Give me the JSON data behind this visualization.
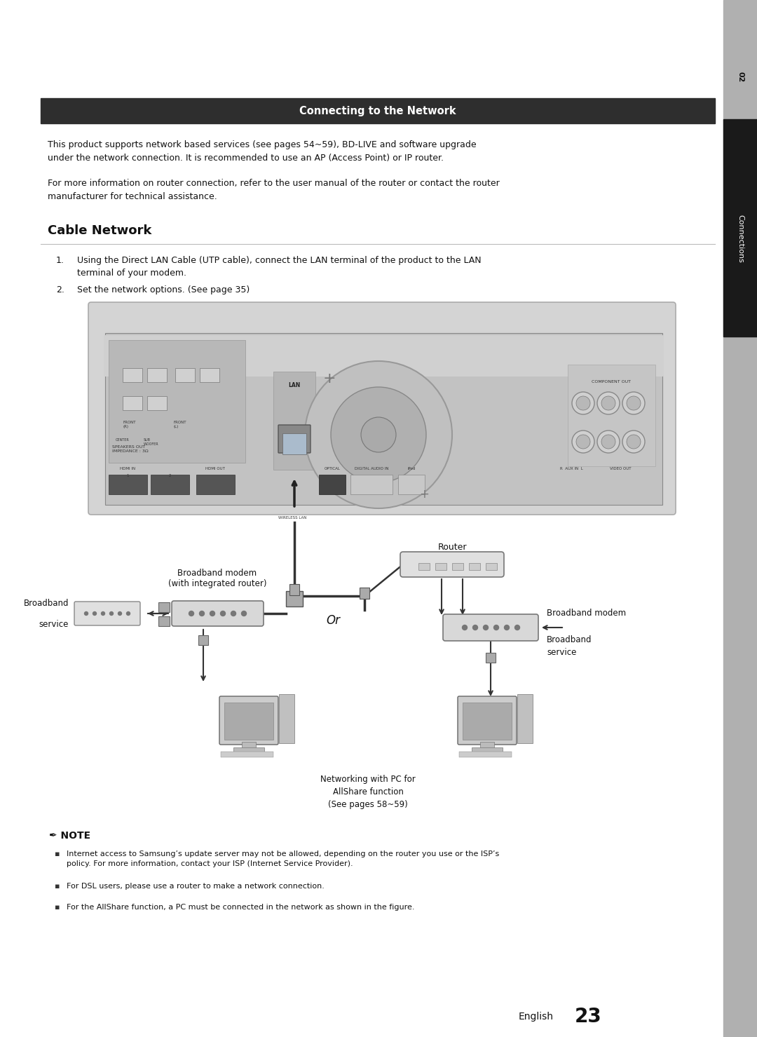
{
  "bg_color": "#ffffff",
  "title_bar_color": "#2e2e2e",
  "title_bar_text": "Connecting to the Network",
  "title_bar_text_color": "#ffffff",
  "title_bar_fontsize": 10.5,
  "section_title": "Cable Network",
  "section_title_fontsize": 13,
  "section_line_color": "#bbbbbb",
  "body_text_color": "#111111",
  "body_fontsize": 9.0,
  "note_fontsize": 8.0,
  "intro_text1": "This product supports network based services (see pages 54~59), BD-LIVE and software upgrade\nunder the network connection. It is recommended to use an AP (Access Point) or IP router.",
  "intro_text2": "For more information on router connection, refer to the user manual of the router or contact the router\nmanufacturer for technical assistance.",
  "step1_num": "1.",
  "step1_text": "Using the Direct LAN Cable (UTP cable), connect the LAN terminal of the product to the LAN\nterminal of your modem.",
  "step2_num": "2.",
  "step2_text": "Set the network options. (See page 35)",
  "note_title": "NOTE",
  "note_bullets": [
    "Internet access to Samsung’s update server may not be allowed, depending on the router you use or the ISP’s\npolicy. For more information, contact your ISP (Internet Service Provider).",
    "For DSL users, please use a router to make a network connection.",
    "For the AllShare function, a PC must be connected in the network as shown in the figure."
  ],
  "footer_text": "English",
  "footer_number": "23",
  "sidebar_bg_color": "#b0b0b0",
  "sidebar_dark_color": "#1a1a1a",
  "sidebar_text": "02",
  "sidebar_text2": "Connections",
  "diagram": {
    "router_label": "Router",
    "or_label": "Or",
    "modem_left_label": "Broadband modem\n(with integrated router)",
    "modem_right_label": "Broadband modem",
    "service_left_label1": "Broadband",
    "service_left_label2": "service",
    "service_right_label1": "Broadband",
    "service_right_label2": "service",
    "networking_caption": "Networking with PC for\nAllShare function\n(See pages 58~59)"
  }
}
